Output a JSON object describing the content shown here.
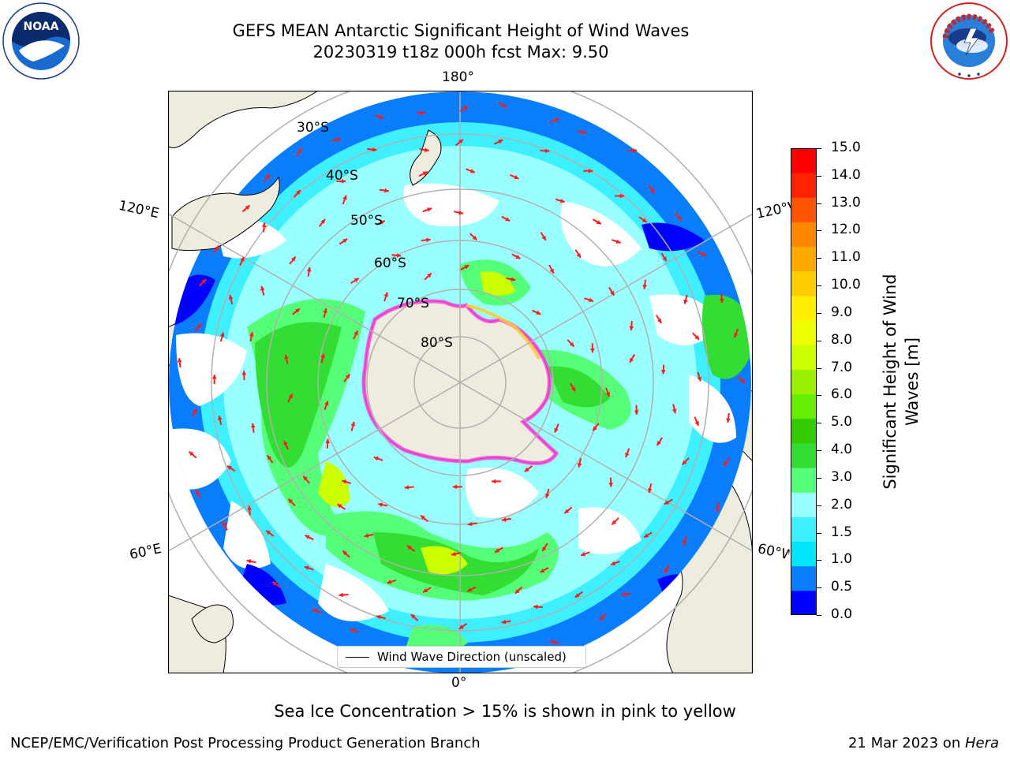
{
  "title": {
    "line1": "GEFS MEAN Antarctic Significant Height of Wind Waves",
    "line2": "20230319 t18z 000h fcst   Max: 9.50"
  },
  "logos": {
    "noaa": {
      "text": "NOAA",
      "ring_text": "NATIONAL OCEANIC AND ATMOSPHERIC ADMINISTRATION · U.S. DEPARTMENT OF COMMERCE"
    },
    "nws": {
      "ring_text": "NATIONAL WEATHER SERVICE"
    }
  },
  "map": {
    "projection": "south-polar-stereographic",
    "longitude_labels": {
      "top": "180°",
      "bottom": "0°",
      "upper_left": "120°E",
      "upper_right": "120°W",
      "lower_left": "60°E",
      "lower_right": "60°W"
    },
    "latitude_labels": [
      "30°S",
      "40°S",
      "50°S",
      "60°S",
      "70°S",
      "80°S"
    ],
    "land_color": "#eeecdf",
    "graticule_color": "#b0b0b0",
    "sea_ice_colors": [
      "#ff44dd",
      "#ff66cc",
      "#ffcc33"
    ],
    "arrow_color": "#ff1a1a",
    "legend": {
      "line_label": "Wind Wave Direction (unscaled)"
    }
  },
  "colorbar": {
    "label": "Significant Height of Wind Waves [m]",
    "label_line1": "Significant Height of Wind",
    "label_line2": "Waves [m]",
    "ticks": [
      "15.0",
      "14.0",
      "13.0",
      "12.0",
      "11.0",
      "10.0",
      "9.0",
      "8.0",
      "7.0",
      "6.0",
      "5.0",
      "4.0",
      "3.0",
      "2.0",
      "1.5",
      "1.0",
      "0.5",
      "0.0"
    ],
    "colors_bottom_to_top": [
      "#0000ff",
      "#0a7dff",
      "#00e6ff",
      "#3ef0ff",
      "#99ffff",
      "#55ff77",
      "#33dd33",
      "#33cc00",
      "#66ee00",
      "#99f000",
      "#ccff00",
      "#f0ff00",
      "#ffee00",
      "#ffcc00",
      "#ffaa00",
      "#ff8800",
      "#ff5500",
      "#ff2200",
      "#ff0000"
    ]
  },
  "caption": "Sea Ice Concentration > 15% is shown in pink to yellow",
  "footer": {
    "left": "NCEP/EMC/Verification Post Processing Product Generation Branch",
    "right_date": "21 Mar 2023 on ",
    "right_host": "Hera"
  }
}
